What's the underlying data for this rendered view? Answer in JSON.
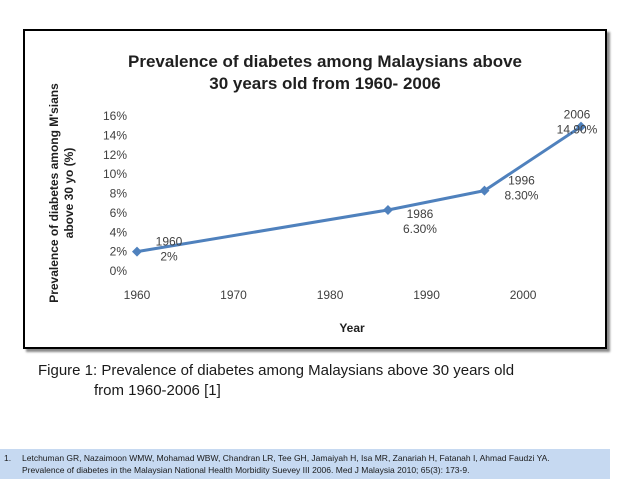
{
  "chart_data": {
    "type": "line",
    "title_lines": [
      "Prevalence of diabetes among Malaysians above",
      "30 years old from 1960- 2006"
    ],
    "xlabel": "Year",
    "ylabel_lines": [
      "Prevalence of diabetes among M'sians",
      "above 30 yo (%)"
    ],
    "xlim": [
      1960,
      2006
    ],
    "x_ticks": [
      "1960",
      "1970",
      "1980",
      "1990",
      "2000"
    ],
    "ylim": [
      0,
      16
    ],
    "y_ticks": [
      "0%",
      "2%",
      "4%",
      "6%",
      "8%",
      "10%",
      "12%",
      "14%",
      "16%"
    ],
    "grid": false,
    "line_color": "#4f81bd",
    "series": [
      {
        "x": [
          1960,
          1986,
          1996,
          2006
        ],
        "values": [
          2.0,
          6.3,
          8.3,
          14.9
        ],
        "label_years": [
          "1960",
          "1986",
          "1996",
          "2006"
        ],
        "label_values": [
          "2%",
          "6.30%",
          "8.30%",
          "14.90%"
        ]
      }
    ]
  },
  "caption": {
    "line1": "Figure 1: Prevalence of diabetes among Malaysians above 30 years old",
    "line2": "from 1960-2006 [1]"
  },
  "reference": {
    "number": "1.",
    "line1": "Letchuman GR, Nazaimoon WMW, Mohamad WBW, Chandran LR, Tee GH, Jamaiyah H, Isa MR, Zanariah H, Fatanah I, Ahmad Faudzi YA.",
    "line2": "Prevalence of diabetes in the Malaysian National Health Morbidity Suevey III 2006. Med J Malaysia 2010; 65(3): 173-9."
  }
}
